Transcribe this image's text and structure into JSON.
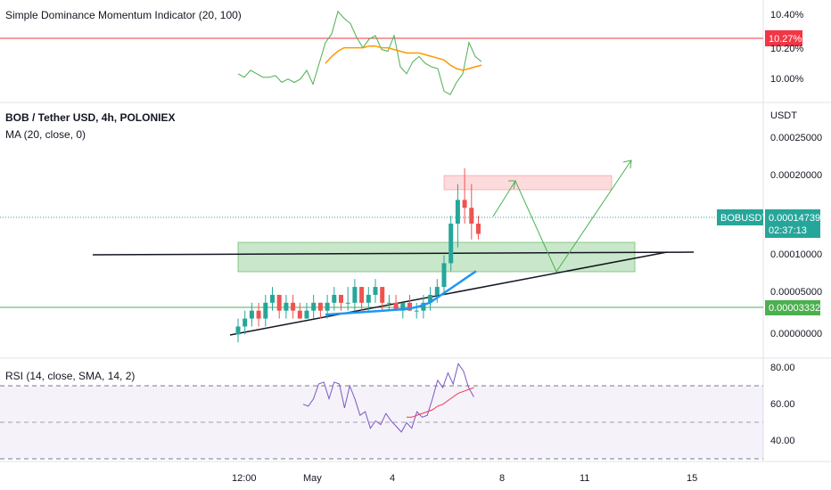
{
  "panels": {
    "top_title": "Simple Dominance Momentum Indicator (20, 100)",
    "main_title": "BOB / Tether USD, 4h, POLONIEX",
    "ma_title": "MA (20, close, 0)",
    "rsi_title": "RSI (14, close, SMA, 14, 2)",
    "currency": "USDT"
  },
  "tags": {
    "top_value": "10.27%",
    "symbol": "BOBUSDT",
    "price": "0.00014739",
    "countdown": "02:37:13",
    "support": "0.00003332"
  },
  "colors": {
    "up": "#26a69a",
    "down": "#ef5350",
    "ma": "#2196f3",
    "sdm_line": "#4caf50",
    "sdm_signal": "#ff9800",
    "sdm_level": "#f23645",
    "rsi": "#7e57c2",
    "rsi_ma": "#f23645",
    "support": "#4caf50",
    "trend": "#131722"
  },
  "chart_data": [
    {
      "type": "line",
      "title": "Simple Dominance Momentum Indicator (20, 100)",
      "y_ticks": [
        "10.40%",
        "10.20%",
        "10.00%"
      ],
      "ylim": [
        9.93,
        10.48
      ],
      "level": 10.27,
      "series": [
        {
          "values": [
            10.08,
            10.06,
            10.1,
            10.08,
            10.06,
            10.06,
            10.07,
            10.03,
            10.05,
            10.03,
            10.05,
            10.1,
            10.02,
            10.14,
            10.26,
            10.31,
            10.44,
            10.4,
            10.37,
            10.29,
            10.23,
            10.28,
            10.3,
            10.22,
            10.21,
            10.3,
            10.12,
            10.08,
            10.15,
            10.18,
            10.14,
            10.12,
            10.11,
            9.98,
            9.96,
            10.03,
            10.08,
            10.26,
            10.18,
            10.15
          ]
        },
        {
          "values": [
            null,
            null,
            null,
            null,
            null,
            null,
            null,
            null,
            null,
            null,
            null,
            null,
            null,
            null,
            10.14,
            10.18,
            10.21,
            10.23,
            10.23,
            10.23,
            10.23,
            10.24,
            10.24,
            10.23,
            10.23,
            10.22,
            10.21,
            10.2,
            10.2,
            10.2,
            10.19,
            10.18,
            10.17,
            10.16,
            10.13,
            10.11,
            10.1,
            10.11,
            10.12,
            10.13
          ]
        }
      ]
    },
    {
      "type": "candlestick",
      "title": "BOB / Tether USD, 4h, POLONIEX",
      "x_ticks": [
        "12:00",
        "May",
        "4",
        "8",
        "11",
        "15"
      ],
      "y_ticks": [
        "0.00025000",
        "0.00020000",
        "0.00010000",
        "0.00005000",
        "0.00000000"
      ],
      "ylim": [
        -1e-05,
        0.000285
      ],
      "last_price": 0.00014739,
      "support_level": 3.332e-05,
      "candles": [
        [
          2e-05,
          4e-05,
          1e-05,
          3e-05
        ],
        [
          3e-05,
          5e-05,
          2e-05,
          4e-05
        ],
        [
          4e-05,
          6e-05,
          3e-05,
          5e-05
        ],
        [
          5e-05,
          6e-05,
          3e-05,
          4e-05
        ],
        [
          4e-05,
          7e-05,
          3e-05,
          6e-05
        ],
        [
          6e-05,
          8e-05,
          5e-05,
          7e-05
        ],
        [
          7e-05,
          7e-05,
          4e-05,
          5e-05
        ],
        [
          5e-05,
          7e-05,
          4e-05,
          6e-05
        ],
        [
          6e-05,
          7e-05,
          4e-05,
          5e-05
        ],
        [
          5e-05,
          6e-05,
          4e-05,
          4e-05
        ],
        [
          4e-05,
          6e-05,
          4e-05,
          5e-05
        ],
        [
          5e-05,
          7e-05,
          4e-05,
          6e-05
        ],
        [
          6e-05,
          6e-05,
          4e-05,
          5e-05
        ],
        [
          5e-05,
          7e-05,
          4e-05,
          6e-05
        ],
        [
          6e-05,
          8e-05,
          5e-05,
          7e-05
        ],
        [
          7e-05,
          7e-05,
          5e-05,
          6e-05
        ],
        [
          6e-05,
          8e-05,
          5e-05,
          6e-05
        ],
        [
          6e-05,
          9e-05,
          5e-05,
          8e-05
        ],
        [
          8e-05,
          8e-05,
          5e-05,
          6e-05
        ],
        [
          6e-05,
          8e-05,
          5e-05,
          7e-05
        ],
        [
          7e-05,
          9e-05,
          6e-05,
          8e-05
        ],
        [
          8e-05,
          8e-05,
          5e-05,
          6e-05
        ],
        [
          6e-05,
          7e-05,
          5e-05,
          6e-05
        ],
        [
          6e-05,
          7e-05,
          5e-05,
          5e-05
        ],
        [
          5e-05,
          6e-05,
          4e-05,
          6e-05
        ],
        [
          6e-05,
          7e-05,
          5e-05,
          5e-05
        ],
        [
          5e-05,
          6e-05,
          4e-05,
          5e-05
        ],
        [
          5e-05,
          7e-05,
          4e-05,
          6e-05
        ],
        [
          6e-05,
          8e-05,
          5e-05,
          7e-05
        ],
        [
          7e-05,
          9e-05,
          6e-05,
          8e-05
        ],
        [
          8e-05,
          0.00012,
          7e-05,
          0.00011
        ],
        [
          0.00011,
          0.00017,
          0.0001,
          0.00016
        ],
        [
          0.00016,
          0.00021,
          0.00013,
          0.00019
        ],
        [
          0.00019,
          0.00023,
          0.00016,
          0.00018
        ],
        [
          0.00018,
          0.00021,
          0.00014,
          0.00016
        ],
        [
          0.00016,
          0.00017,
          0.00014,
          0.000147
        ]
      ],
      "ma": [
        4.5e-05,
        4.6e-05,
        4.7e-05,
        4.8e-05,
        4.9e-05,
        5e-05,
        5.1e-05,
        5.2e-05,
        5.5e-05,
        6e-05,
        7e-05,
        8e-05,
        9e-05,
        0.0001
      ]
    },
    {
      "type": "line",
      "title": "RSI (14, close, SMA, 14, 2)",
      "y_ticks": [
        "80.00",
        "60.00",
        "40.00"
      ],
      "ylim": [
        28,
        84
      ],
      "bands": [
        70,
        50,
        30
      ],
      "series": [
        {
          "values": [
            59,
            58,
            62,
            70,
            71,
            62,
            71,
            70,
            57,
            69,
            62,
            53,
            55,
            46,
            50,
            48,
            54,
            50,
            47,
            44,
            49,
            46,
            55,
            52,
            53,
            62,
            72,
            68,
            76,
            70,
            81,
            77,
            68,
            63
          ]
        },
        {
          "values": [
            null,
            null,
            null,
            null,
            null,
            null,
            null,
            null,
            null,
            null,
            null,
            null,
            null,
            null,
            null,
            null,
            null,
            null,
            null,
            null,
            52,
            52,
            53,
            54,
            55,
            56,
            58,
            59,
            61,
            63,
            65,
            66,
            67,
            68
          ]
        }
      ]
    }
  ]
}
